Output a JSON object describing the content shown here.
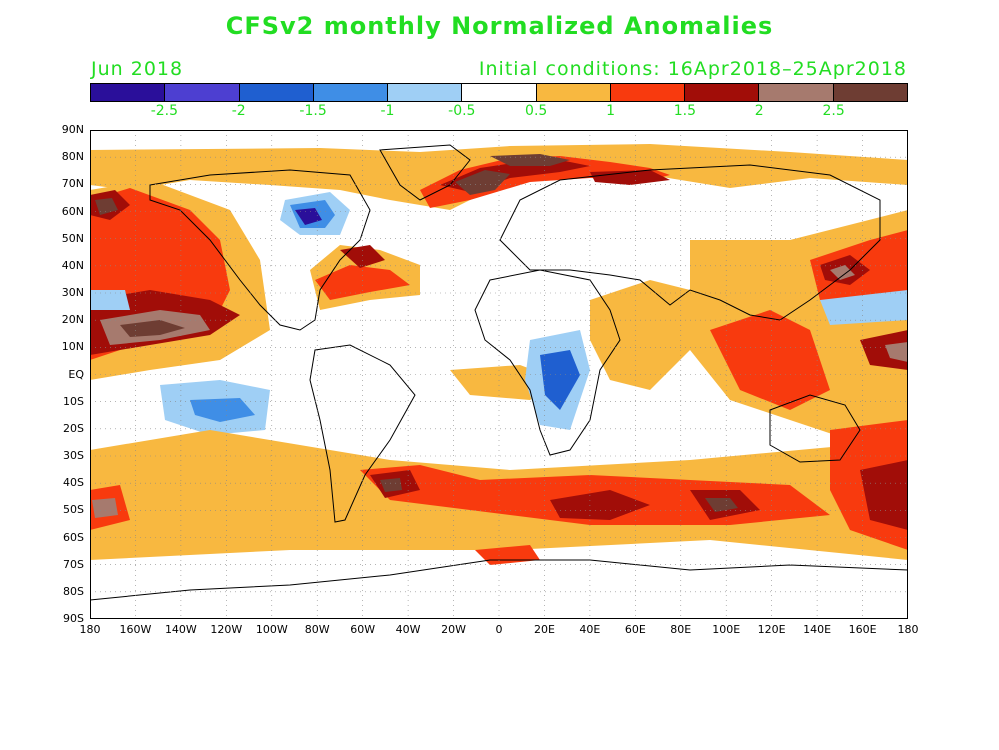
{
  "title": "CFSv2 monthly Normalized Anomalies",
  "month_label": "Jun 2018",
  "init_label": "Initial conditions: 16Apr2018–25Apr2018",
  "colorbar": {
    "colors": [
      "#2a0f9a",
      "#4d3fd1",
      "#1f5fd0",
      "#3f8ee6",
      "#9fcff5",
      "#ffffff",
      "#f8b840",
      "#f83a0e",
      "#a10d08",
      "#a67a6e",
      "#6e3d33"
    ],
    "tick_labels": [
      "-2.5",
      "-2",
      "-1.5",
      "-1",
      "-0.5",
      "0.5",
      "1",
      "1.5",
      "2",
      "2.5"
    ]
  },
  "lat_labels": [
    "90N",
    "80N",
    "70N",
    "60N",
    "50N",
    "40N",
    "30N",
    "20N",
    "10N",
    "EQ",
    "10S",
    "20S",
    "30S",
    "40S",
    "50S",
    "60S",
    "70S",
    "80S",
    "90S"
  ],
  "lon_labels": [
    "180",
    "160W",
    "140W",
    "120W",
    "100W",
    "80W",
    "60W",
    "40W",
    "20W",
    "0",
    "20E",
    "40E",
    "60E",
    "80E",
    "100E",
    "120E",
    "140E",
    "160E",
    "180"
  ]
}
